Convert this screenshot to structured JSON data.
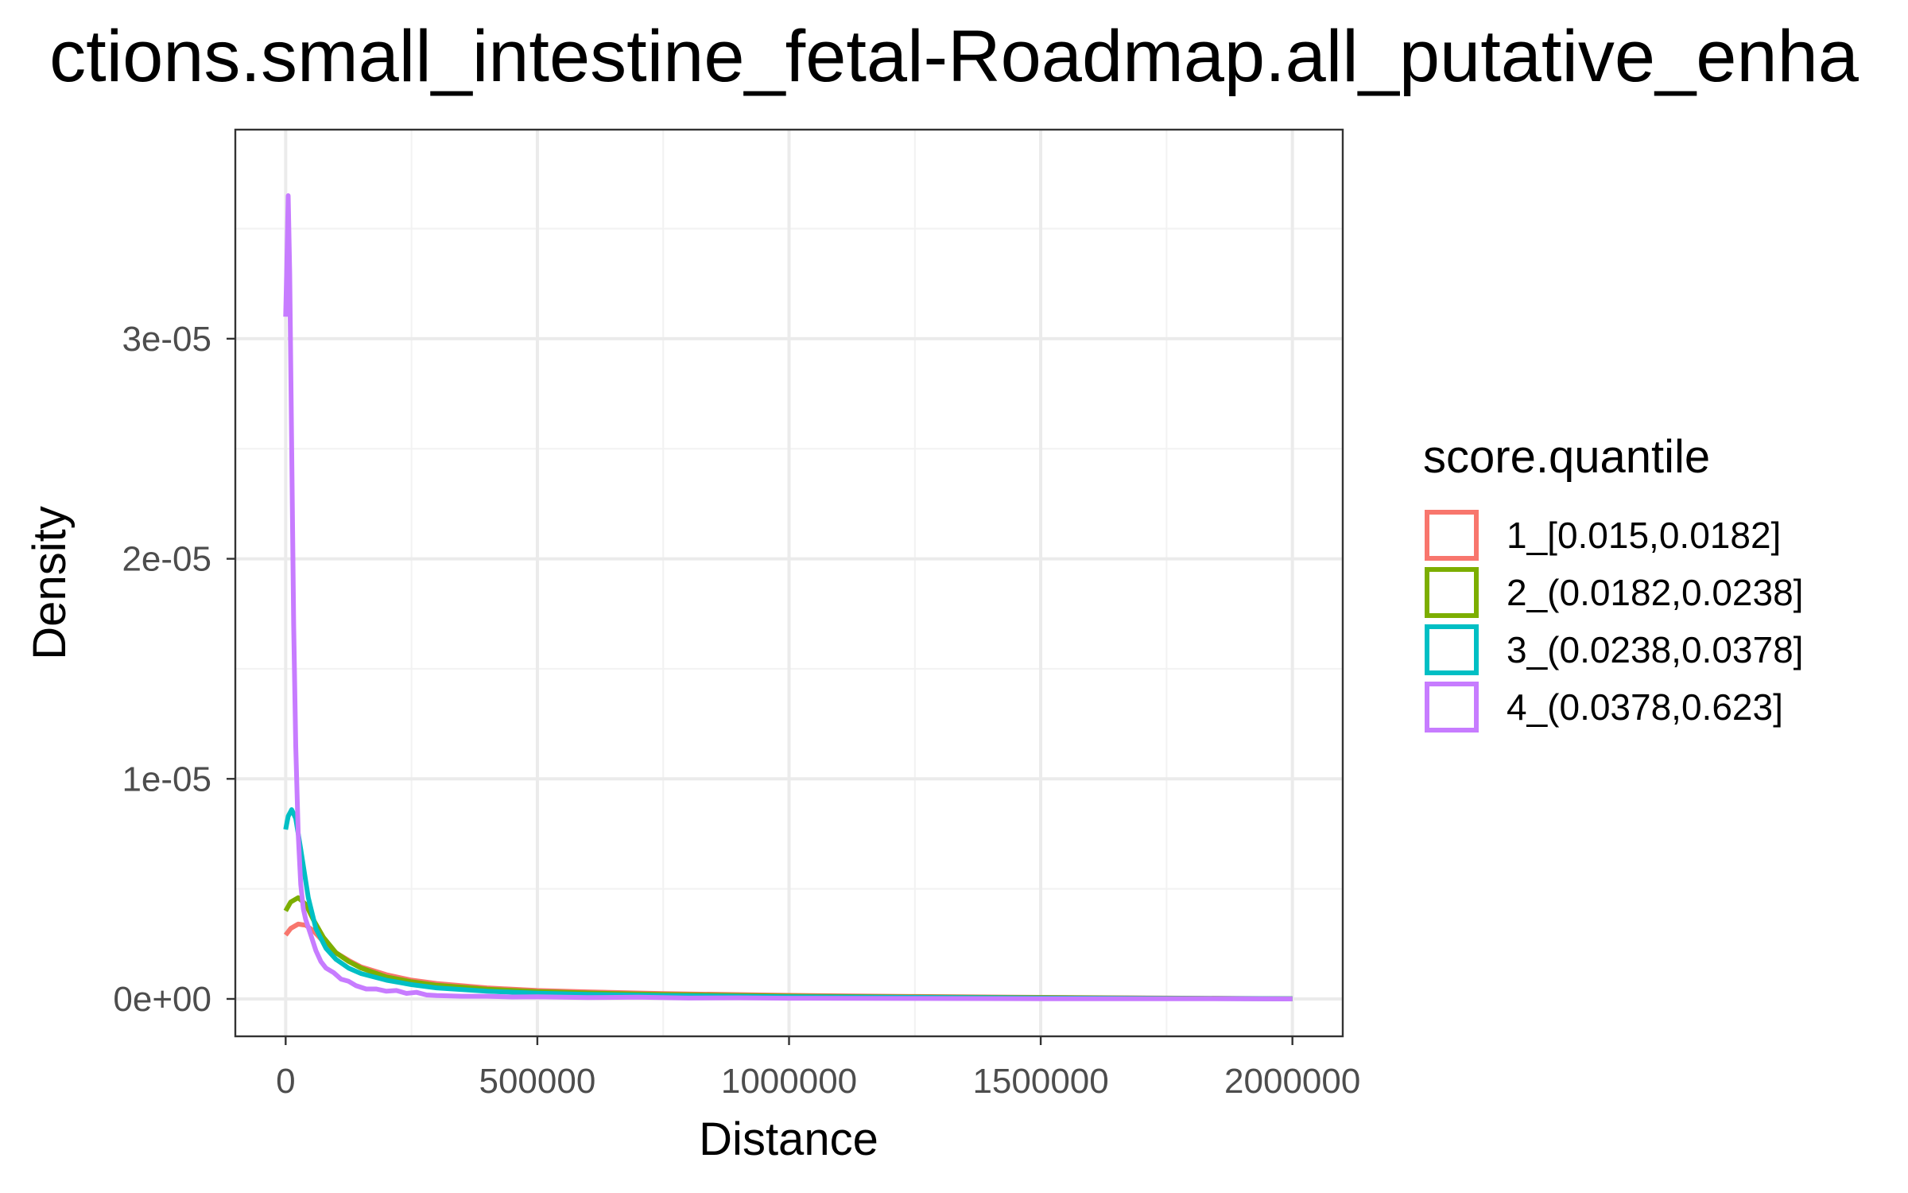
{
  "chart_data": {
    "type": "line",
    "title": "ctions.small_intestine_fetal-Roadmap.all_putative_enha",
    "xlabel": "Distance",
    "ylabel": "Density",
    "xlim": [
      -100000,
      2100000
    ],
    "ylim": [
      -1.7e-06,
      3.95e-05
    ],
    "x_ticks": [
      0,
      500000,
      1000000,
      1500000,
      2000000
    ],
    "x_tick_labels": [
      "0",
      "500000",
      "1000000",
      "1500000",
      "2000000"
    ],
    "y_ticks": [
      0,
      1e-05,
      2e-05,
      3e-05
    ],
    "y_tick_labels": [
      "0e+00",
      "1e-05",
      "2e-05",
      "3e-05"
    ],
    "grid": true,
    "legend": {
      "title": "score.quantile",
      "position": "right"
    },
    "series": [
      {
        "name": "1_[0.015,0.0182]",
        "color": "#F8766D",
        "x": [
          0,
          10000,
          25000,
          40000,
          55000,
          75000,
          100000,
          125000,
          150000,
          200000,
          250000,
          300000,
          400000,
          500000,
          600000,
          750000,
          1000000,
          1250000,
          1500000,
          1750000,
          2000000
        ],
        "y": [
          2.9e-06,
          3.2e-06,
          3.4e-06,
          3.35e-06,
          3.1e-06,
          2.6e-06,
          2.1e-06,
          1.75e-06,
          1.45e-06,
          1.1e-06,
          8.5e-07,
          7e-07,
          5e-07,
          3.8e-07,
          3.2e-07,
          2.4e-07,
          1.6e-07,
          1.1e-07,
          7e-08,
          4e-08,
          1e-08
        ]
      },
      {
        "name": "2_(0.0182,0.0238]",
        "color": "#7CAE00",
        "x": [
          0,
          10000,
          25000,
          40000,
          55000,
          75000,
          100000,
          125000,
          150000,
          200000,
          250000,
          300000,
          400000,
          500000,
          600000,
          750000,
          1000000,
          1250000,
          1500000,
          1750000,
          2000000
        ],
        "y": [
          4e-06,
          4.4e-06,
          4.6e-06,
          4.3e-06,
          3.6e-06,
          2.8e-06,
          2.1e-06,
          1.7e-06,
          1.4e-06,
          1e-06,
          7.8e-07,
          6.2e-07,
          4.4e-07,
          3.3e-07,
          2.7e-07,
          2e-07,
          1.3e-07,
          9e-08,
          6e-08,
          3e-08,
          1e-08
        ]
      },
      {
        "name": "3_(0.0238,0.0378]",
        "color": "#00BFC4",
        "x": [
          0,
          5000,
          12000,
          20000,
          30000,
          45000,
          60000,
          80000,
          100000,
          125000,
          150000,
          200000,
          250000,
          300000,
          400000,
          500000,
          600000,
          750000,
          1000000,
          1250000,
          1500000,
          1750000,
          2000000
        ],
        "y": [
          7.7e-06,
          8.3e-06,
          8.6e-06,
          8.2e-06,
          6.8e-06,
          4.6e-06,
          3.2e-06,
          2.3e-06,
          1.8e-06,
          1.4e-06,
          1.15e-06,
          8.5e-07,
          6.5e-07,
          5e-07,
          3.5e-07,
          2.6e-07,
          2.1e-07,
          1.5e-07,
          1e-07,
          7e-08,
          4e-08,
          2e-08,
          1e-08
        ]
      },
      {
        "name": "4_(0.0378,0.623]",
        "color": "#C77CFF",
        "x": [
          0,
          2000,
          5000,
          8000,
          12000,
          16000,
          20000,
          25000,
          30000,
          35000,
          40000,
          50000,
          60000,
          70000,
          80000,
          95000,
          110000,
          125000,
          140000,
          160000,
          180000,
          200000,
          220000,
          240000,
          260000,
          280000,
          300000,
          350000,
          400000,
          450000,
          500000,
          600000,
          700000,
          800000,
          900000,
          1000000,
          1250000,
          1500000,
          1750000,
          2000000
        ],
        "y": [
          3.1e-05,
          3.3e-05,
          3.65e-05,
          3.3e-05,
          2.5e-05,
          1.7e-05,
          1.15e-05,
          7.5e-06,
          5.2e-06,
          4.1e-06,
          3.6e-06,
          2.9e-06,
          2.2e-06,
          1.7e-06,
          1.4e-06,
          1.2e-06,
          9e-07,
          8e-07,
          6e-07,
          4.5e-07,
          4.5e-07,
          3.5e-07,
          3.8e-07,
          2.5e-07,
          3e-07,
          1.8e-07,
          1.5e-07,
          1.2e-07,
          1.2e-07,
          9e-08,
          1e-07,
          6e-08,
          8e-08,
          4e-08,
          5e-08,
          3e-08,
          2e-08,
          1e-08,
          1e-08,
          0
        ]
      }
    ]
  }
}
